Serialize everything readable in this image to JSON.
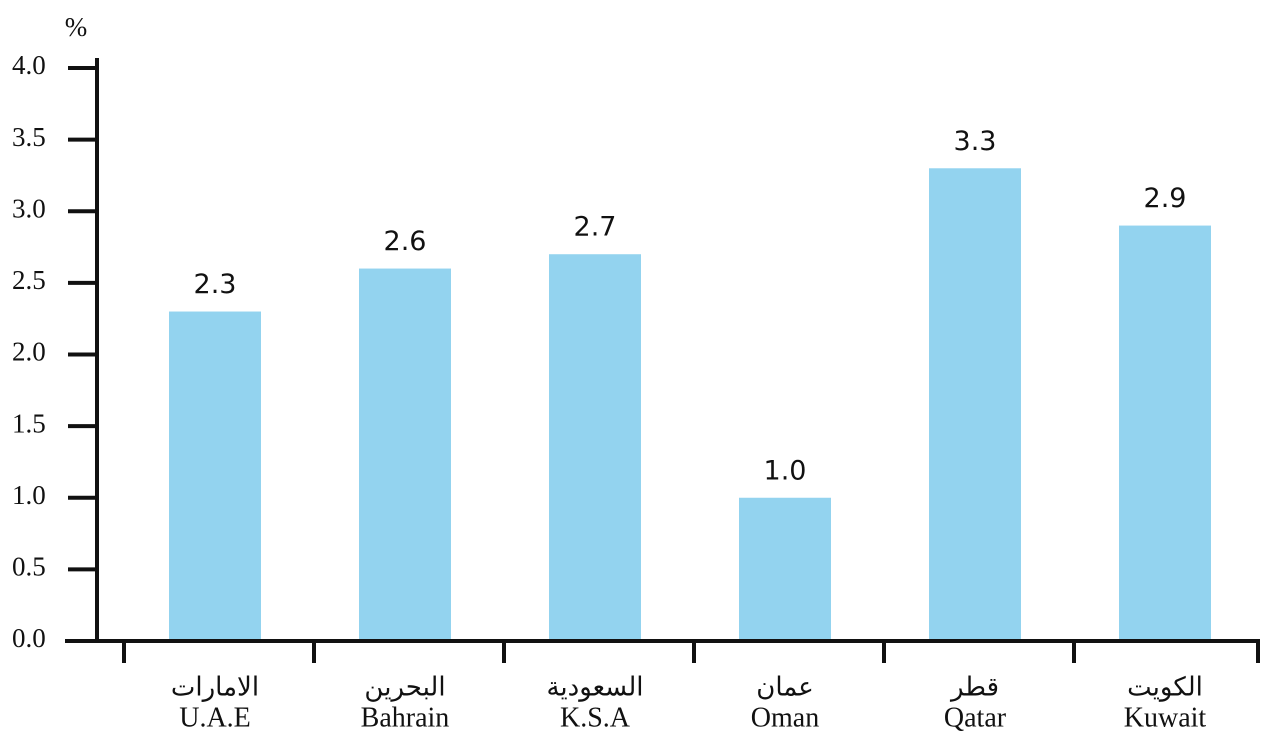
{
  "chart_data": {
    "type": "bar",
    "y_axis_label": "%",
    "categories": [
      "U.A.E",
      "Bahrain",
      "K.S.A",
      "Oman",
      "Qatar",
      "Kuwait"
    ],
    "categories_arabic": [
      "الامارات",
      "البحرين",
      "السعودية",
      "عمان",
      "قطر",
      "الكويت"
    ],
    "values": [
      2.3,
      2.6,
      2.7,
      1.0,
      3.3,
      2.9
    ],
    "value_labels": [
      "2.3",
      "2.6",
      "2.7",
      "1.0",
      "3.3",
      "2.9"
    ],
    "color": "#93d3ef",
    "ylim": [
      0,
      4
    ],
    "yticks": [
      {
        "value": 0,
        "label": "0.0"
      },
      {
        "value": 0.5,
        "label": "0.5"
      },
      {
        "value": 1,
        "label": "1.0"
      },
      {
        "value": 1.5,
        "label": "1.5"
      },
      {
        "value": 2,
        "label": "2.0"
      },
      {
        "value": 2.5,
        "label": "2.5"
      },
      {
        "value": 3,
        "label": "3.0"
      },
      {
        "value": 3.5,
        "label": "3.5"
      },
      {
        "value": 4,
        "label": "4.0"
      }
    ],
    "grid": false
  }
}
